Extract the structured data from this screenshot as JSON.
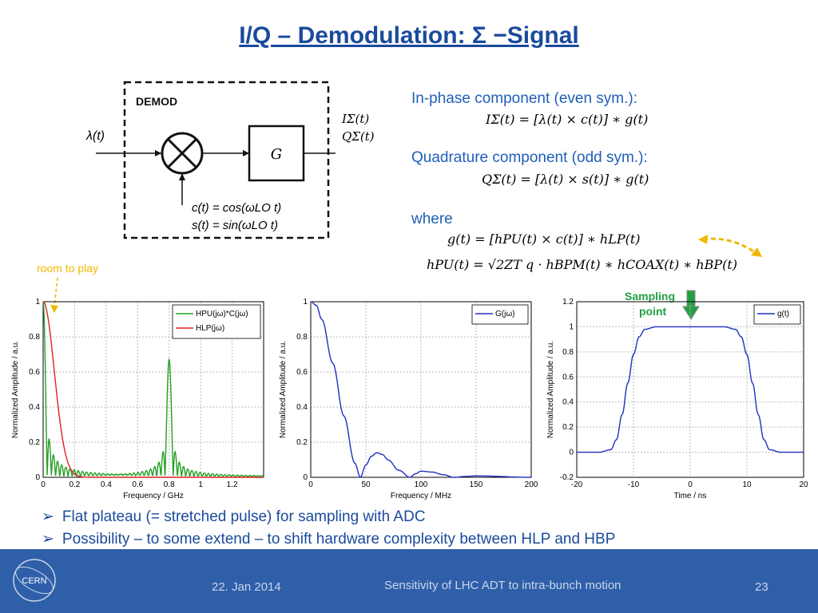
{
  "slide": {
    "title": "I/Q – Demodulation: Σ −Signal",
    "diagram": {
      "box_label": "DEMOD",
      "input": "λ(t)",
      "block": "G",
      "out_i": "IΣ(t)",
      "out_q": "QΣ(t)",
      "c_def": "c(t) = cos(ωLO t)",
      "s_def": "s(t) = sin(ωLO t)"
    },
    "right_text": {
      "inphase_head": "In-phase component (even sym.):",
      "inphase_eq": "IΣ(t) = [λ(t) × c(t)] ∗ g(t)",
      "quad_head": "Quadrature component (odd sym.):",
      "quad_eq": "QΣ(t) = [λ(t) × s(t)] ∗ g(t)",
      "where": "where",
      "g_eq": "g(t) = [hPU(t) × c(t)] ∗ hLP(t)",
      "hpu_eq": "hPU(t) = √2ZT q · hBPM(t) ∗ hCOAX(t) ∗ hBP(t)"
    },
    "annotations": {
      "room": "room to play",
      "sampling": "Sampling",
      "point": "point"
    },
    "bullets": [
      "Flat plateau (= stretched pulse) for sampling with ADC",
      "Possibility – to some extend – to shift hardware complexity between HLP and HBP"
    ],
    "footer": {
      "date": "22. Jan 2014",
      "center": "Sensitivity of LHC ADT to intra-bunch motion",
      "page": "23",
      "logo": "CERN"
    },
    "colors": {
      "title": "#1a4a9c",
      "footer": "#2f5fa8",
      "annot": "#f0b800"
    }
  },
  "chart_data": [
    {
      "type": "line",
      "xlabel": "Frequency / GHz",
      "ylabel": "Normalized Amplitude / a.u.",
      "xlim": [
        0,
        1.4
      ],
      "ylim": [
        0,
        1
      ],
      "xticks": [
        "0",
        "0.2",
        "0.4",
        "0.6",
        "0.8",
        "1",
        "1.2"
      ],
      "yticks": [
        "0",
        "0.2",
        "0.4",
        "0.6",
        "0.8",
        "1"
      ],
      "legend": "top-right",
      "series": [
        {
          "name": "HPU(jω)*C(jω)",
          "color": "#22a022",
          "description_points": [
            [
              0,
              1
            ],
            [
              0.04,
              0.12
            ],
            [
              0.06,
              0.22
            ],
            [
              0.08,
              0.02
            ],
            [
              0.09,
              0.15
            ],
            [
              0.11,
              0.02
            ],
            [
              0.13,
              0.1
            ],
            [
              0.3,
              0.03
            ],
            [
              0.5,
              0.04
            ],
            [
              0.6,
              0.08
            ],
            [
              0.7,
              0.15
            ],
            [
              0.8,
              0.67
            ],
            [
              0.9,
              0.15
            ],
            [
              1.0,
              0.08
            ],
            [
              1.2,
              0.03
            ],
            [
              1.4,
              0.01
            ]
          ]
        },
        {
          "name": "HLP(jω)",
          "color": "#e02020",
          "description_points": [
            [
              0,
              1
            ],
            [
              0.05,
              0.75
            ],
            [
              0.1,
              0.35
            ],
            [
              0.15,
              0.12
            ],
            [
              0.2,
              0.04
            ],
            [
              0.3,
              0.01
            ],
            [
              1.4,
              0
            ]
          ]
        }
      ]
    },
    {
      "type": "line",
      "xlabel": "Frequency / MHz",
      "ylabel": "Normalized Amplitude / a.u.",
      "xlim": [
        0,
        200
      ],
      "ylim": [
        0,
        1
      ],
      "xticks": [
        "0",
        "50",
        "100",
        "150",
        "200"
      ],
      "yticks": [
        "0",
        "0.2",
        "0.4",
        "0.6",
        "0.8",
        "1"
      ],
      "legend": "top-right",
      "series": [
        {
          "name": "G(jω)",
          "color": "#2030c0",
          "points": [
            [
              0,
              1
            ],
            [
              5,
              0.98
            ],
            [
              10,
              0.9
            ],
            [
              20,
              0.65
            ],
            [
              30,
              0.35
            ],
            [
              40,
              0.08
            ],
            [
              45,
              0
            ],
            [
              50,
              0.07
            ],
            [
              55,
              0.12
            ],
            [
              60,
              0.14
            ],
            [
              65,
              0.13
            ],
            [
              70,
              0.1
            ],
            [
              80,
              0.04
            ],
            [
              90,
              0
            ],
            [
              95,
              0.02
            ],
            [
              100,
              0.035
            ],
            [
              110,
              0.03
            ],
            [
              120,
              0.015
            ],
            [
              130,
              0
            ],
            [
              140,
              0.005
            ],
            [
              150,
              0.008
            ],
            [
              200,
              0
            ]
          ]
        }
      ]
    },
    {
      "type": "line",
      "xlabel": "Time / ns",
      "ylabel": "Normalized Amplitude / a.u.",
      "xlim": [
        -20,
        20
      ],
      "ylim": [
        -0.2,
        1.2
      ],
      "xticks": [
        "-20",
        "-10",
        "0",
        "10",
        "20"
      ],
      "yticks": [
        "-0.2",
        "0",
        "0.2",
        "0.4",
        "0.6",
        "0.8",
        "1",
        "1.2"
      ],
      "legend": "top-right",
      "series": [
        {
          "name": "g(t)",
          "color": "#2030c0",
          "points": [
            [
              -20,
              0
            ],
            [
              -16,
              0
            ],
            [
              -14,
              0.02
            ],
            [
              -13,
              0.1
            ],
            [
              -12,
              0.3
            ],
            [
              -11,
              0.55
            ],
            [
              -10,
              0.78
            ],
            [
              -9,
              0.92
            ],
            [
              -8,
              0.98
            ],
            [
              -6,
              1
            ],
            [
              6,
              1
            ],
            [
              8,
              0.98
            ],
            [
              9,
              0.92
            ],
            [
              10,
              0.78
            ],
            [
              11,
              0.55
            ],
            [
              12,
              0.3
            ],
            [
              13,
              0.1
            ],
            [
              14,
              0.02
            ],
            [
              16,
              0
            ],
            [
              20,
              0
            ]
          ]
        }
      ]
    }
  ]
}
